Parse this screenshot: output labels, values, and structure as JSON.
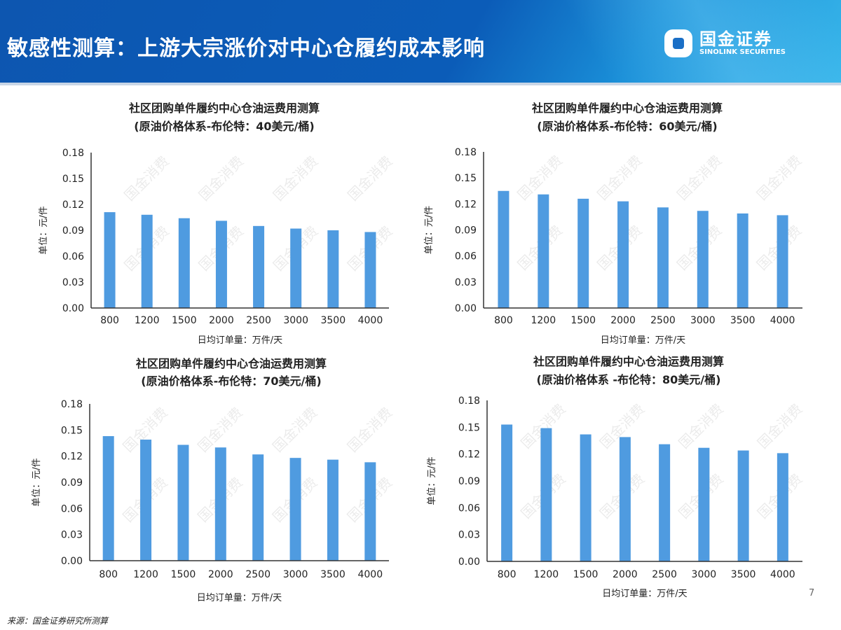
{
  "header": {
    "title": "敏感性测算：上游大宗涨价对中心仓履约成本影响",
    "logo_cn": "国金证券",
    "logo_en": "SINOLINK SECURITIES"
  },
  "watermark": "国金消费",
  "colors": {
    "bar": "#4f9be0",
    "header": "#0b5cb8"
  },
  "chart_data": [
    {
      "type": "bar",
      "title": "社区团购单件履约中心仓油运费用测算",
      "subtitle": "(原油价格体系-布伦特：40美元/桶)",
      "xlabel": "日均订单量：万件/天",
      "ylabel": "单位：元/件",
      "categories": [
        "800",
        "1200",
        "1500",
        "2000",
        "2500",
        "3000",
        "3500",
        "4000"
      ],
      "values": [
        0.111,
        0.108,
        0.104,
        0.101,
        0.095,
        0.092,
        0.09,
        0.088
      ],
      "ylim": [
        0,
        0.18
      ],
      "yticks": [
        "0.00",
        "0.03",
        "0.06",
        "0.09",
        "0.12",
        "0.15",
        "0.18"
      ],
      "grid": false
    },
    {
      "type": "bar",
      "title": "社区团购单件履约中心仓油运费用测算",
      "subtitle": "(原油价格体系-布伦特：60美元/桶)",
      "xlabel": "日均订单量：万件/天",
      "ylabel": "单位：元/件",
      "categories": [
        "800",
        "1200",
        "1500",
        "2000",
        "2500",
        "3000",
        "3500",
        "4000"
      ],
      "values": [
        0.135,
        0.131,
        0.126,
        0.123,
        0.116,
        0.112,
        0.109,
        0.107
      ],
      "ylim": [
        0,
        0.18
      ],
      "yticks": [
        "0.00",
        "0.03",
        "0.06",
        "0.09",
        "0.12",
        "0.15",
        "0.18"
      ],
      "grid": false
    },
    {
      "type": "bar",
      "title": "社区团购单件履约中心仓油运费用测算",
      "subtitle": "(原油价格体系-布伦特：70美元/桶)",
      "xlabel": "日均订单量：万件/天",
      "ylabel": "单位：元/件",
      "categories": [
        "800",
        "1200",
        "1500",
        "2000",
        "2500",
        "3000",
        "3500",
        "4000"
      ],
      "values": [
        0.143,
        0.139,
        0.133,
        0.13,
        0.122,
        0.118,
        0.116,
        0.113
      ],
      "ylim": [
        0,
        0.18
      ],
      "yticks": [
        "0.00",
        "0.03",
        "0.06",
        "0.09",
        "0.12",
        "0.15",
        "0.18"
      ],
      "grid": false
    },
    {
      "type": "bar",
      "title": "社区团购单件履约中心仓油运费用测算",
      "subtitle": "(原油价格体系 -布伦特：80美元/桶)",
      "xlabel": "日均订单量：万件/天",
      "ylabel": "单位：元/件",
      "categories": [
        "800",
        "1200",
        "1500",
        "2000",
        "2500",
        "3000",
        "3500",
        "4000"
      ],
      "values": [
        0.153,
        0.149,
        0.142,
        0.139,
        0.131,
        0.127,
        0.124,
        0.121
      ],
      "ylim": [
        0,
        0.18
      ],
      "yticks": [
        "0.00",
        "0.03",
        "0.06",
        "0.09",
        "0.12",
        "0.15",
        "0.18"
      ],
      "grid": false
    }
  ],
  "footer": {
    "page_number": "7",
    "source": "来源：国金证券研究所测算"
  }
}
